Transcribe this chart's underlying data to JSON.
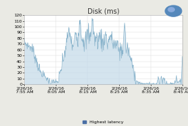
{
  "title": "Disk (ms)",
  "xlabels": [
    "2/26/16\n7:55 AM",
    "2/26/16\n8:05 AM",
    "2/26/16\n8:15 AM",
    "2/26/16\n8:25 AM",
    "2/26/16\n8:35 AM",
    "2/26/16\n8:45 AM"
  ],
  "ylim": [
    0,
    120
  ],
  "yticks": [
    0,
    10,
    20,
    30,
    40,
    50,
    60,
    70,
    80,
    90,
    100,
    110,
    120
  ],
  "line_color": "#8ab4cc",
  "fill_color": "#c2d9e8",
  "bg_color": "#eaeae4",
  "plot_bg": "#ffffff",
  "grid_color": "#cccccc",
  "legend_label": "Highest latency",
  "legend_color": "#4a6fa5",
  "title_fontsize": 7,
  "tick_fontsize": 4.5,
  "icon_color": "#4a7fc1"
}
